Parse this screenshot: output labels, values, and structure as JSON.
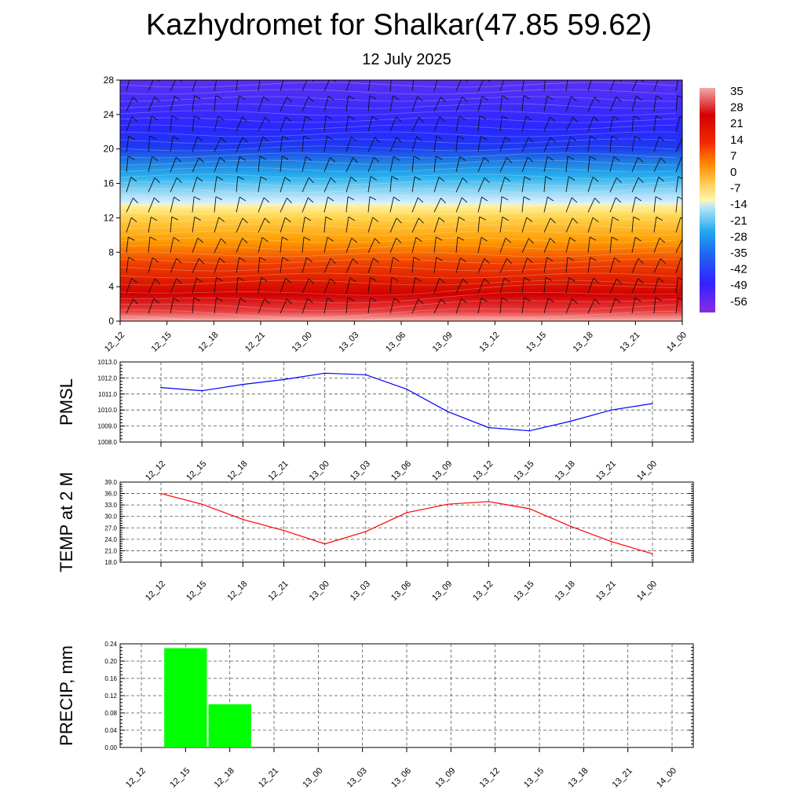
{
  "title": "Kazhydromet for Shalkar(47.85 59.62)",
  "subtitle": "12 July 2025",
  "time_labels": [
    "12_12",
    "12_15",
    "12_18",
    "12_21",
    "13_00",
    "13_03",
    "13_06",
    "13_09",
    "13_12",
    "13_15",
    "13_18",
    "13_21",
    "14_00"
  ],
  "chart_data": [
    {
      "type": "heatmap",
      "title": "Kazhydromet for Shalkar(47.85 59.62)",
      "subtitle": "12 July 2025",
      "x": [
        "12_12",
        "12_15",
        "12_18",
        "12_21",
        "13_00",
        "13_03",
        "13_06",
        "13_09",
        "13_12",
        "13_15",
        "13_18",
        "13_21",
        "14_00"
      ],
      "yticks": [
        0,
        4,
        8,
        12,
        16,
        20,
        24,
        28
      ],
      "ylim": [
        0,
        28
      ],
      "colorbar_labels": [
        "35",
        "28",
        "21",
        "14",
        "7",
        "0",
        "-7",
        "-14",
        "-21",
        "-28",
        "-35",
        "-42",
        "-49",
        "-56"
      ],
      "colorbar_range": [
        -63,
        42
      ],
      "colors": {
        "warm": "#e00000",
        "yellow": "#ffe66a",
        "cyan": "#27b8f0",
        "blue": "#2a27ff",
        "violet": "#8a2be2"
      },
      "wind_barbs": true
    },
    {
      "type": "line",
      "ylabel": "PMSL",
      "x": [
        "12_12",
        "12_15",
        "12_18",
        "12_21",
        "13_00",
        "13_03",
        "13_06",
        "13_09",
        "13_12",
        "13_15",
        "13_18",
        "13_21",
        "14_00"
      ],
      "series": [
        {
          "values": [
            1011.4,
            1011.2,
            1011.6,
            1011.9,
            1012.3,
            1012.2,
            1011.3,
            1009.9,
            1008.9,
            1008.7,
            1009.3,
            1010.0,
            1010.4
          ],
          "color": "#0000ff"
        }
      ],
      "yticks": [
        "1013.0",
        "1012.0",
        "1011.0",
        "1010.0",
        "1009.0",
        "1008.0"
      ],
      "ylim": [
        1008.0,
        1013.0
      ],
      "grid": true
    },
    {
      "type": "line",
      "ylabel": "TEMP at 2 M",
      "x": [
        "12_12",
        "12_15",
        "12_18",
        "12_21",
        "13_00",
        "13_03",
        "13_06",
        "13_09",
        "13_12",
        "13_15",
        "13_18",
        "13_21",
        "14_00"
      ],
      "series": [
        {
          "values": [
            36.0,
            33.2,
            29.2,
            26.3,
            22.8,
            26.0,
            31.0,
            33.2,
            33.9,
            32.0,
            27.4,
            23.4,
            20.2
          ],
          "color": "#ff0000"
        }
      ],
      "yticks": [
        "39.0",
        "36.0",
        "33.0",
        "30.0",
        "27.0",
        "24.0",
        "21.0",
        "18.0"
      ],
      "ylim": [
        18.0,
        39.0
      ],
      "grid": true
    },
    {
      "type": "bar",
      "ylabel": "PRECIP, mm",
      "categories": [
        "12_12",
        "12_15",
        "12_18",
        "12_21",
        "13_00",
        "13_03",
        "13_06",
        "13_09",
        "13_12",
        "13_15",
        "13_18",
        "13_21",
        "14_00"
      ],
      "values": [
        0,
        0.23,
        0.1,
        0,
        0,
        0,
        0,
        0,
        0,
        0,
        0,
        0,
        0
      ],
      "color": "#00ff00",
      "yticks": [
        "0.24",
        "0.20",
        "0.16",
        "0.12",
        "0.08",
        "0.04",
        "0.00"
      ],
      "ylim": [
        0,
        0.24
      ],
      "grid": true
    }
  ]
}
